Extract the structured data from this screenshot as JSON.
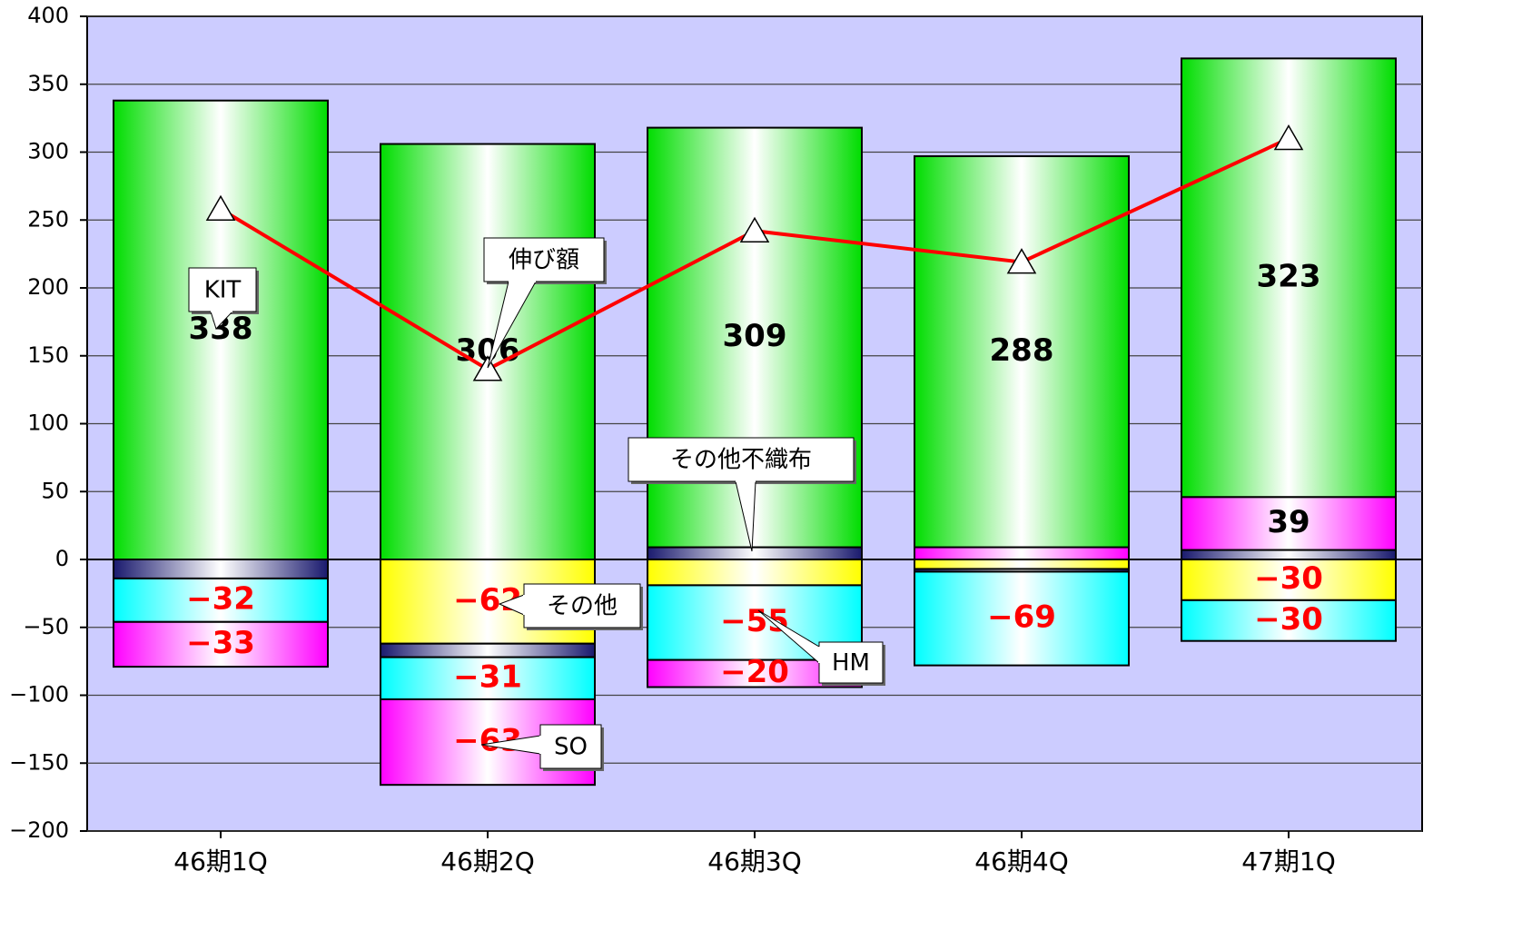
{
  "chart_data": {
    "type": "bar",
    "categories": [
      "46期1Q",
      "46期2Q",
      "46期3Q",
      "46期4Q",
      "47期1Q"
    ],
    "ylim": [
      -200,
      400
    ],
    "yticks": [
      {
        "value": -200,
        "label": "−200"
      },
      {
        "value": -150,
        "label": "−150"
      },
      {
        "value": -100,
        "label": "−100"
      },
      {
        "value": -50,
        "label": "−50"
      },
      0,
      50,
      100,
      150,
      200,
      250,
      300,
      350,
      400
    ],
    "grid": true,
    "series": [
      {
        "name": "その他不織布",
        "color": "#1a1a6e",
        "values": [
          -14,
          -10,
          9,
          -2,
          7
        ]
      },
      {
        "name": "SO",
        "color": "#ff00ff",
        "values": [
          -33,
          -63,
          -20,
          9,
          39
        ],
        "value_labels": [
          "−33",
          "−63",
          "−20",
          null,
          "39"
        ]
      },
      {
        "name": "KIT",
        "color": "#00dd00",
        "values": [
          338,
          306,
          309,
          288,
          323
        ],
        "value_labels": [
          "338",
          "306",
          "309",
          "288",
          "323"
        ]
      },
      {
        "name": "その他",
        "color": "#ffff00",
        "values": [
          null,
          -62,
          -19,
          -7,
          -30
        ],
        "value_labels": [
          null,
          "−62",
          null,
          null,
          "−30"
        ]
      },
      {
        "name": "HM",
        "color": "#00ffff",
        "values": [
          -32,
          -31,
          -55,
          -69,
          -30
        ],
        "value_labels": [
          "−32",
          "−31",
          "−55",
          "−69",
          "−30"
        ]
      },
      {
        "name": "伸び額",
        "type": "line",
        "color": "#ff0000",
        "values": [
          258,
          140,
          242,
          219,
          310
        ]
      }
    ]
  }
}
